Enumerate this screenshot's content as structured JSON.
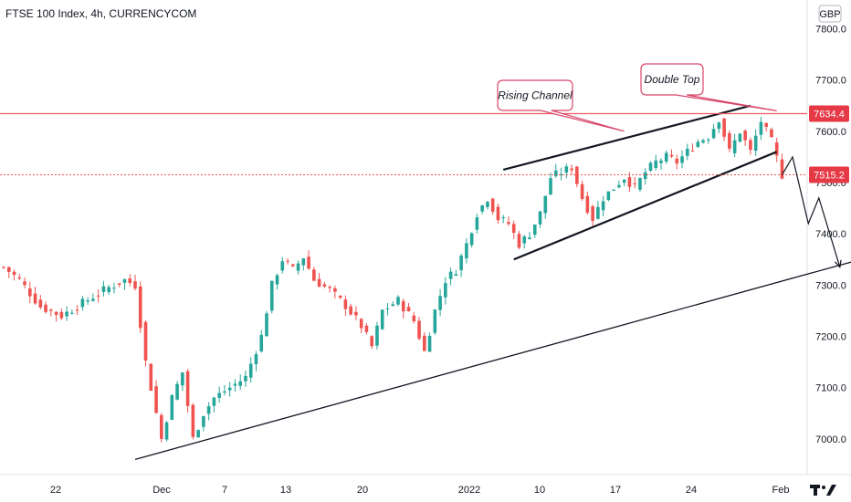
{
  "header": {
    "title": "FTSE 100 Index, 4h, CURRENCYCOM"
  },
  "currency_badge": "GBP",
  "colors": {
    "up": "#26a69a",
    "down": "#ef5350",
    "resistance_line": "#f05a64",
    "price_tag_red": "#e63946",
    "callout_border": "#d9466a",
    "trend_line": "#131722",
    "axis_text": "#131722"
  },
  "price_tags": {
    "resistance": "7634.4",
    "last": "7515.2"
  },
  "watermark_icon": "tradingview-logo-icon",
  "chart_data": {
    "type": "candlestick",
    "title": "FTSE 100 Index, 4h, CURRENCYCOM",
    "y_axis": {
      "position": "right",
      "ticks": [
        "7800.0",
        "7700.0",
        "7600.0",
        "7500.0",
        "7400.0",
        "7300.0",
        "7200.0",
        "7100.0",
        "7000.0"
      ],
      "ylim": [
        6935,
        7840
      ]
    },
    "x_axis": {
      "ticks": [
        "22",
        "Dec",
        "7",
        "13",
        "20",
        "2022",
        "10",
        "17",
        "24",
        "Feb"
      ]
    },
    "grid": false,
    "anchors": [
      {
        "t": 0,
        "p": 7335
      },
      {
        "t": 3,
        "p": 7310
      },
      {
        "t": 7,
        "p": 7258
      },
      {
        "t": 11,
        "p": 7240
      },
      {
        "t": 15,
        "p": 7265
      },
      {
        "t": 19,
        "p": 7290
      },
      {
        "t": 23,
        "p": 7310
      },
      {
        "t": 25,
        "p": 7300
      },
      {
        "t": 27,
        "p": 7150
      },
      {
        "t": 29,
        "p": 7050
      },
      {
        "t": 30,
        "p": 7000
      },
      {
        "t": 32,
        "p": 7080
      },
      {
        "t": 34,
        "p": 7130
      },
      {
        "t": 36,
        "p": 7000
      },
      {
        "t": 38,
        "p": 7050
      },
      {
        "t": 40,
        "p": 7080
      },
      {
        "t": 43,
        "p": 7100
      },
      {
        "t": 46,
        "p": 7120
      },
      {
        "t": 49,
        "p": 7200
      },
      {
        "t": 51,
        "p": 7300
      },
      {
        "t": 53,
        "p": 7350
      },
      {
        "t": 55,
        "p": 7330
      },
      {
        "t": 57,
        "p": 7355
      },
      {
        "t": 59,
        "p": 7310
      },
      {
        "t": 62,
        "p": 7290
      },
      {
        "t": 65,
        "p": 7260
      },
      {
        "t": 68,
        "p": 7220
      },
      {
        "t": 70,
        "p": 7180
      },
      {
        "t": 72,
        "p": 7250
      },
      {
        "t": 75,
        "p": 7270
      },
      {
        "t": 78,
        "p": 7230
      },
      {
        "t": 80,
        "p": 7170
      },
      {
        "t": 82,
        "p": 7250
      },
      {
        "t": 84,
        "p": 7310
      },
      {
        "t": 86,
        "p": 7330
      },
      {
        "t": 88,
        "p": 7380
      },
      {
        "t": 90,
        "p": 7440
      },
      {
        "t": 92,
        "p": 7470
      },
      {
        "t": 94,
        "p": 7430
      },
      {
        "t": 96,
        "p": 7420
      },
      {
        "t": 98,
        "p": 7380
      },
      {
        "t": 100,
        "p": 7400
      },
      {
        "t": 102,
        "p": 7440
      },
      {
        "t": 104,
        "p": 7510
      },
      {
        "t": 106,
        "p": 7520
      },
      {
        "t": 108,
        "p": 7530
      },
      {
        "t": 110,
        "p": 7470
      },
      {
        "t": 112,
        "p": 7430
      },
      {
        "t": 114,
        "p": 7470
      },
      {
        "t": 116,
        "p": 7490
      },
      {
        "t": 118,
        "p": 7510
      },
      {
        "t": 120,
        "p": 7490
      },
      {
        "t": 122,
        "p": 7520
      },
      {
        "t": 124,
        "p": 7540
      },
      {
        "t": 126,
        "p": 7550
      },
      {
        "t": 128,
        "p": 7540
      },
      {
        "t": 130,
        "p": 7560
      },
      {
        "t": 132,
        "p": 7580
      },
      {
        "t": 134,
        "p": 7590
      },
      {
        "t": 136,
        "p": 7625
      },
      {
        "t": 138,
        "p": 7560
      },
      {
        "t": 140,
        "p": 7600
      },
      {
        "t": 142,
        "p": 7560
      },
      {
        "t": 144,
        "p": 7620
      },
      {
        "t": 146,
        "p": 7580
      },
      {
        "t": 148,
        "p": 7515
      }
    ],
    "lines": [
      {
        "name": "upper-channel",
        "from": [
          95,
          7525
        ],
        "to": [
          142,
          7650
        ]
      },
      {
        "name": "lower-channel",
        "from": [
          97,
          7350
        ],
        "to": [
          147,
          7560
        ]
      },
      {
        "name": "long-trendline",
        "from": [
          25,
          6960
        ],
        "to": [
          170,
          7370
        ]
      },
      {
        "name": "resistance",
        "price": 7634.4
      },
      {
        "name": "last-price",
        "price": 7515.2
      }
    ],
    "projection": [
      [
        148,
        7515
      ],
      [
        150,
        7550
      ],
      [
        153,
        7420
      ],
      [
        155,
        7470
      ],
      [
        159,
        7335
      ]
    ],
    "annotations": [
      {
        "text": "Rising Channel",
        "anchor": [
          118,
          7600
        ]
      },
      {
        "text": "Double Top",
        "anchor": [
          147,
          7640
        ]
      }
    ]
  }
}
